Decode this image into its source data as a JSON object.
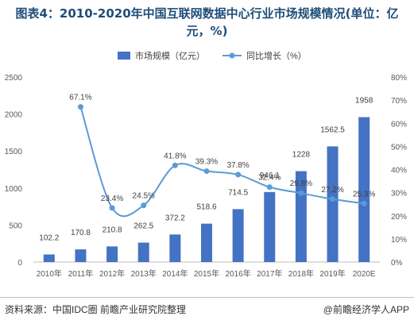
{
  "title": "图表4：2010-2020年中国互联网数据中心行业市场规模情况(单位：亿元，%)",
  "source": "资料来源：中国IDC圈 前瞻产业研究院整理",
  "credit": "@前瞻经济学人APP",
  "colors": {
    "bar": "#4472c4",
    "line": "#5b9bd5",
    "title": "#1f4e79"
  },
  "chart_data": {
    "type": "bar",
    "categories": [
      "2010年",
      "2011年",
      "2012年",
      "2013年",
      "2014年",
      "2015年",
      "2016年",
      "2017年",
      "2018年",
      "2019年",
      "2020E"
    ],
    "series": [
      {
        "name": "市场规模（亿元）",
        "type": "bar",
        "axis": "left",
        "values": [
          102.2,
          170.8,
          210.8,
          262.5,
          372.2,
          518.6,
          714.5,
          946.1,
          1228,
          1562.5,
          1958
        ],
        "labels": [
          "102.2",
          "170.8",
          "210.8",
          "262.5",
          "372.2",
          "518.6",
          "714.5",
          "946.1",
          "1228",
          "1562.5",
          "1958"
        ]
      },
      {
        "name": "同比增长（%）",
        "type": "line",
        "axis": "right",
        "values": [
          null,
          67.1,
          23.4,
          24.5,
          41.8,
          39.3,
          37.8,
          32.4,
          29.8,
          27.2,
          25.3
        ],
        "labels": [
          "",
          "67.1%",
          "23.4%",
          "24.5%",
          "41.8%",
          "39.3%",
          "37.8%",
          "32.4%",
          "29.8%",
          "27.2%",
          "25.3%"
        ]
      }
    ],
    "y_left": {
      "ylim": [
        0,
        2500
      ],
      "ticks": [
        "0",
        "500",
        "1000",
        "1500",
        "2000",
        "2500"
      ]
    },
    "y_right": {
      "ylim": [
        0,
        80
      ],
      "ticks": [
        "0%",
        "10%",
        "20%",
        "30%",
        "40%",
        "50%",
        "60%",
        "70%",
        "80%"
      ]
    },
    "legend": "top-center",
    "grid": false
  }
}
